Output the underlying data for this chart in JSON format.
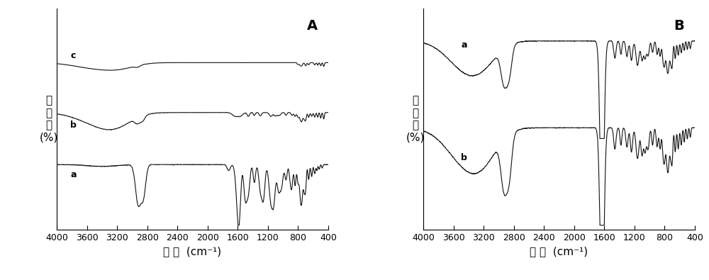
{
  "panel_A_label": "A",
  "panel_B_label": "B",
  "xmin": 400,
  "xmax": 4000,
  "xlabel": "波 数  (cm⁻¹)",
  "ylabel_A": "透\n光\n率\n(%)",
  "ylabel_B": "透\n光\n率\n(%)",
  "line_color": "#111111",
  "background_color": "#ffffff",
  "tick_fontsize": 9,
  "label_fontsize": 11,
  "panel_label_fontsize": 14
}
